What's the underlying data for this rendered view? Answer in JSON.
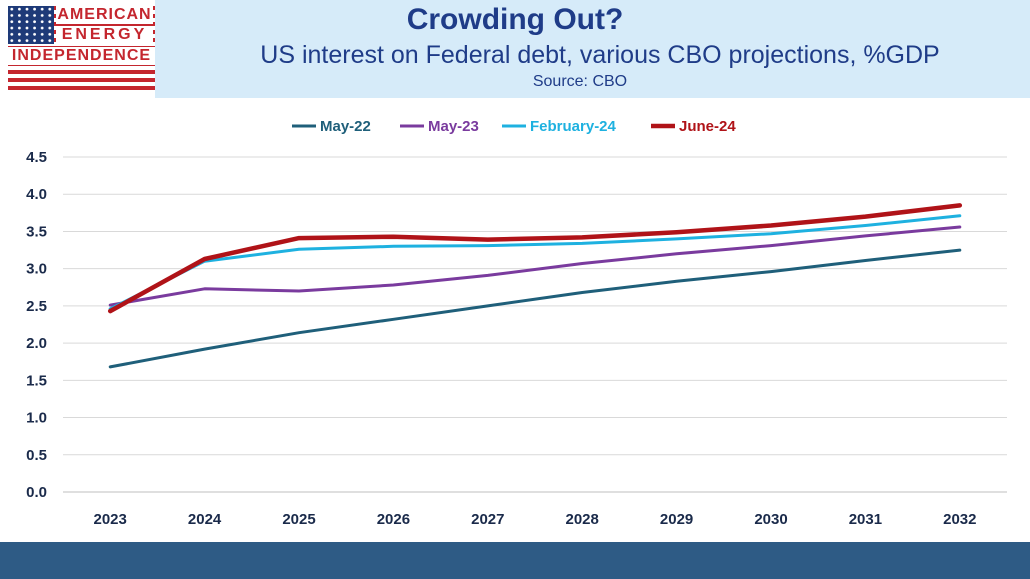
{
  "logo": {
    "line1": "AMERICAN",
    "line2": "ENERGY",
    "line3": "INDEPENDENCE"
  },
  "header": {
    "title": "Crowding Out?",
    "subtitle": "US interest on Federal debt, various CBO projections, %GDP",
    "source": "Source: CBO"
  },
  "colors": {
    "header_bg": "#d6ebf9",
    "title": "#1f3c88",
    "footer": "#2e5b85"
  },
  "chart_data": {
    "type": "line",
    "title": "Crowding Out?",
    "xlabel": "",
    "ylabel": "",
    "ylim": [
      0,
      4.5
    ],
    "yticks": [
      "0.0",
      "0.5",
      "1.0",
      "1.5",
      "2.0",
      "2.5",
      "3.0",
      "3.5",
      "4.0",
      "4.5"
    ],
    "ytick_values": [
      0,
      0.5,
      1.0,
      1.5,
      2.0,
      2.5,
      3.0,
      3.5,
      4.0,
      4.5
    ],
    "categories": [
      "2023",
      "2024",
      "2025",
      "2026",
      "2027",
      "2028",
      "2029",
      "2030",
      "2031",
      "2032"
    ],
    "grid": true,
    "legend_position": "top",
    "series": [
      {
        "name": "May-22",
        "color": "#1f5f7a",
        "width": 3,
        "values": [
          1.68,
          1.92,
          2.14,
          2.32,
          2.5,
          2.68,
          2.83,
          2.96,
          3.11,
          3.25
        ]
      },
      {
        "name": "May-23",
        "color": "#7a3b9e",
        "width": 3,
        "values": [
          2.51,
          2.73,
          2.7,
          2.78,
          2.91,
          3.07,
          3.2,
          3.31,
          3.44,
          3.56
        ]
      },
      {
        "name": "February-24",
        "color": "#1eb1e0",
        "width": 3,
        "values": [
          2.46,
          3.1,
          3.26,
          3.3,
          3.31,
          3.34,
          3.4,
          3.47,
          3.58,
          3.71
        ]
      },
      {
        "name": "June-24",
        "color": "#b01318",
        "width": 4.5,
        "values": [
          2.43,
          3.13,
          3.41,
          3.43,
          3.39,
          3.42,
          3.49,
          3.58,
          3.7,
          3.85
        ]
      }
    ]
  }
}
